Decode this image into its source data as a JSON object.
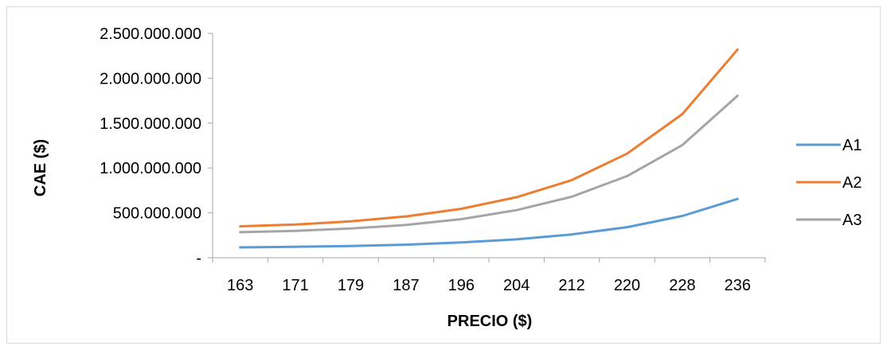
{
  "chart_data": {
    "type": "line",
    "title": "",
    "xlabel": "PRECIO ($)",
    "ylabel": "CAE ($)",
    "categories": [
      "163",
      "171",
      "179",
      "187",
      "196",
      "204",
      "212",
      "220",
      "228",
      "236"
    ],
    "y_tick_labels": [
      "-",
      "500.000.000",
      "1.000.000.000",
      "1.500.000.000",
      "2.000.000.000",
      "2.500.000.000"
    ],
    "ylim": [
      0,
      2500000000
    ],
    "y_ticks": [
      0,
      500000000,
      1000000000,
      1500000000,
      2000000000,
      2500000000
    ],
    "grid": false,
    "legend_position": "right",
    "series": [
      {
        "name": "A1",
        "color": "#5b9bd5",
        "values": [
          115000000,
          122000000,
          130000000,
          145000000,
          170000000,
          205000000,
          260000000,
          340000000,
          465000000,
          655000000
        ]
      },
      {
        "name": "A2",
        "color": "#ed7d31",
        "values": [
          350000000,
          370000000,
          405000000,
          460000000,
          545000000,
          675000000,
          865000000,
          1160000000,
          1600000000,
          2320000000
        ]
      },
      {
        "name": "A3",
        "color": "#a5a5a5",
        "values": [
          285000000,
          300000000,
          325000000,
          365000000,
          430000000,
          530000000,
          680000000,
          910000000,
          1255000000,
          1805000000
        ]
      }
    ]
  }
}
